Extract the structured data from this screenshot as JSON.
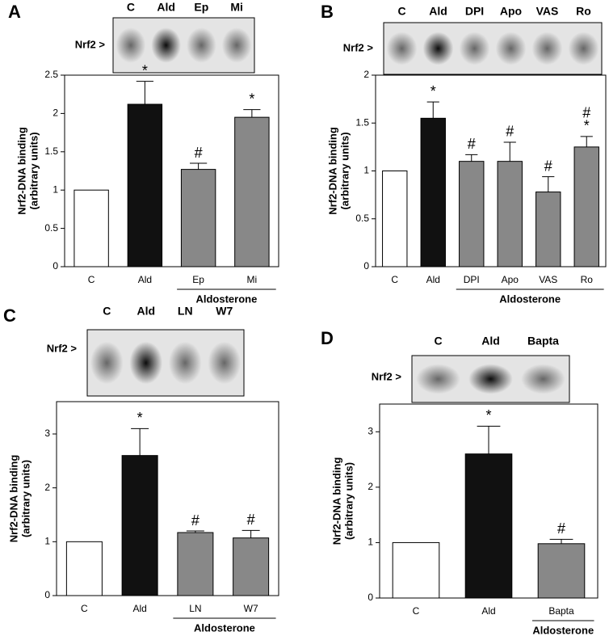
{
  "chart_data": [
    {
      "type": "bar",
      "panel_label": "A",
      "blot_label": "Nrf2 >",
      "lanes": [
        "C",
        "Ald",
        "Ep",
        "Mi"
      ],
      "ylabel": [
        "Nrf2-DNA binding",
        "(arbitrary units)"
      ],
      "categories": [
        "C",
        "Ald",
        "Ep",
        "Mi"
      ],
      "values": [
        1,
        2.12,
        1.27,
        1.95
      ],
      "errors": [
        null,
        0.3,
        0.08,
        0.1
      ],
      "colors": [
        "#ffffff",
        "#111111",
        "#888888",
        "#888888"
      ],
      "annotations": [
        [],
        [
          "*"
        ],
        [
          "#"
        ],
        [
          "*"
        ]
      ],
      "group_label": "Aldosterone",
      "ylim": [
        0,
        2.5
      ],
      "yticks": [
        0,
        0.5,
        1,
        1.5,
        2,
        2.5
      ]
    },
    {
      "type": "bar",
      "panel_label": "B",
      "blot_label": "Nrf2 >",
      "lanes": [
        "C",
        "Ald",
        "DPI",
        "Apo",
        "VAS",
        "Ro"
      ],
      "ylabel": [
        "Nrf2-DNA binding",
        "(arbitrary units)"
      ],
      "categories": [
        "C",
        "Ald",
        "DPI",
        "Apo",
        "VAS",
        "Ro"
      ],
      "values": [
        1,
        1.55,
        1.1,
        1.1,
        0.78,
        1.25
      ],
      "errors": [
        null,
        0.17,
        0.07,
        0.2,
        0.16,
        0.11
      ],
      "colors": [
        "#ffffff",
        "#111111",
        "#888888",
        "#888888",
        "#888888",
        "#888888"
      ],
      "annotations": [
        [],
        [
          "*"
        ],
        [
          "#"
        ],
        [
          "#"
        ],
        [
          "#"
        ],
        [
          "#",
          "*"
        ]
      ],
      "group_label": "Aldosterone",
      "ylim": [
        0,
        2
      ],
      "yticks": [
        0,
        0.5,
        1,
        1.5,
        2
      ]
    },
    {
      "type": "bar",
      "panel_label": "C",
      "blot_label": "Nrf2 >",
      "lanes": [
        "C",
        "Ald",
        "LN",
        "W7"
      ],
      "ylabel": [
        "Nrf2-DNA binding",
        "(arbitrary units)"
      ],
      "categories": [
        "C",
        "Ald",
        "LN",
        "W7"
      ],
      "values": [
        1,
        2.6,
        1.17,
        1.07
      ],
      "errors": [
        null,
        0.5,
        0.03,
        0.14
      ],
      "colors": [
        "#ffffff",
        "#111111",
        "#888888",
        "#888888"
      ],
      "annotations": [
        [],
        [
          "*"
        ],
        [
          "#"
        ],
        [
          "#"
        ]
      ],
      "group_label": "Aldosterone",
      "ylim": [
        0,
        3.6
      ],
      "yticks": [
        0,
        1,
        2,
        3
      ]
    },
    {
      "type": "bar",
      "panel_label": "D",
      "blot_label": "Nrf2 >",
      "lanes": [
        "C",
        "Ald",
        "Bapta"
      ],
      "ylabel": [
        "Nrf2-DNA binding",
        "(arbitrary units)"
      ],
      "categories": [
        "C",
        "Ald",
        "Bapta"
      ],
      "values": [
        1,
        2.6,
        0.98
      ],
      "errors": [
        null,
        0.5,
        0.08
      ],
      "colors": [
        "#ffffff",
        "#111111",
        "#888888"
      ],
      "annotations": [
        [],
        [
          "*"
        ],
        [
          "#"
        ]
      ],
      "group_label": "Aldosterone",
      "ylim": [
        0,
        3.5
      ],
      "yticks": [
        0,
        1,
        2,
        3
      ]
    }
  ]
}
